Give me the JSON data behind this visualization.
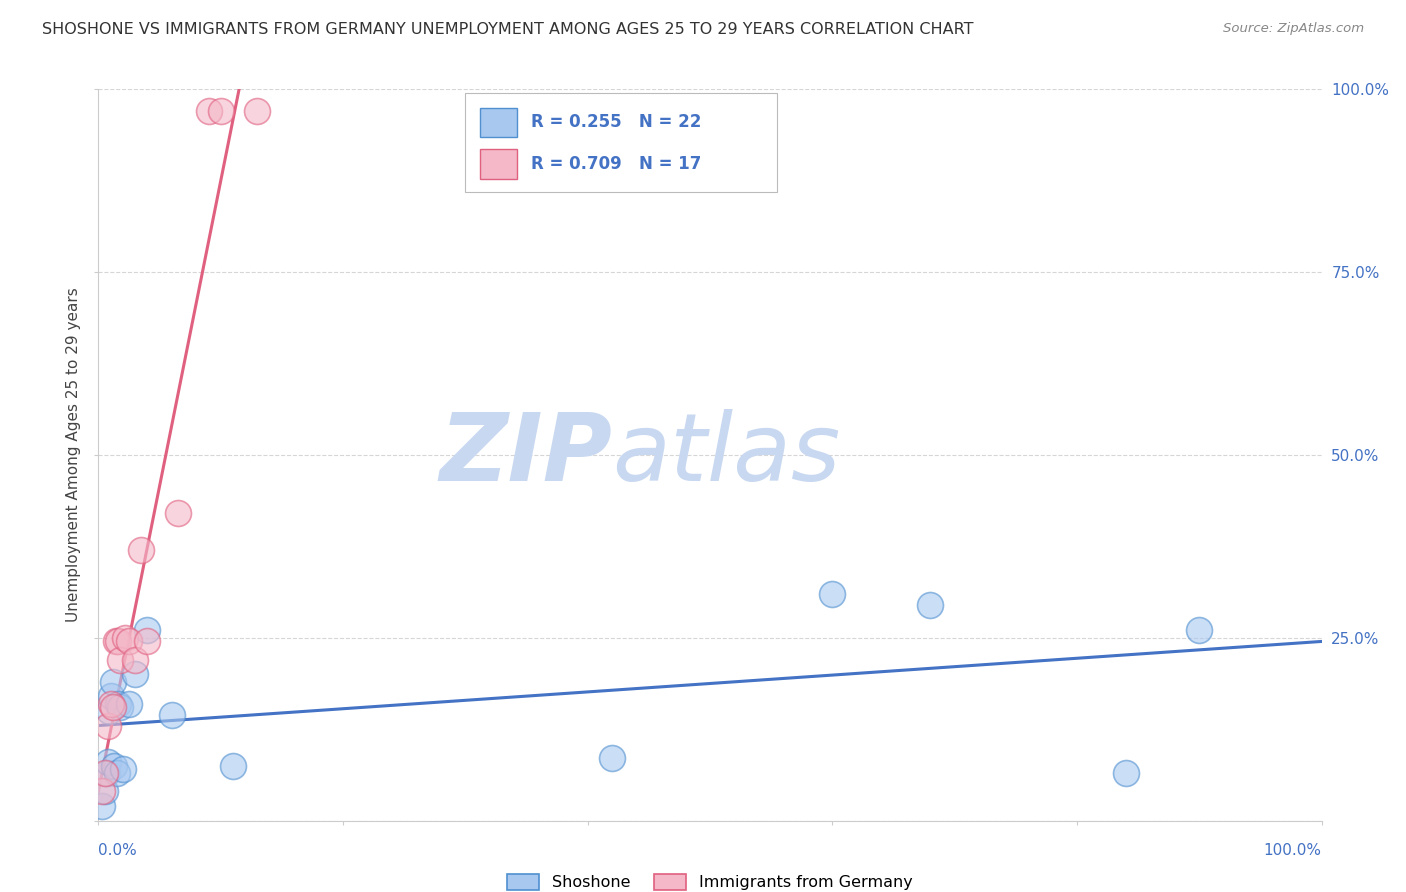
{
  "title": "SHOSHONE VS IMMIGRANTS FROM GERMANY UNEMPLOYMENT AMONG AGES 25 TO 29 YEARS CORRELATION CHART",
  "source": "Source: ZipAtlas.com",
  "ylabel": "Unemployment Among Ages 25 to 29 years",
  "xlim": [
    0,
    1
  ],
  "ylim": [
    0,
    1
  ],
  "ytick_labels": [
    "",
    "25.0%",
    "50.0%",
    "75.0%",
    "100.0%"
  ],
  "ytick_values": [
    0,
    0.25,
    0.5,
    0.75,
    1.0
  ],
  "xtick_values": [
    0,
    0.2,
    0.4,
    0.6,
    0.8,
    1.0
  ],
  "shoshone_color": "#A8C8F0",
  "germany_color": "#F4B8C8",
  "shoshone_edge_color": "#5090D0",
  "germany_edge_color": "#E06080",
  "shoshone_line_color": "#4472C4",
  "germany_line_color": "#E06080",
  "legend_label1": "Shoshone",
  "legend_label2": "Immigrants from Germany",
  "watermark_zip": "ZIP",
  "watermark_atlas": "atlas",
  "watermark_color": "#C8D8F0",
  "shoshone_x": [
    0.003,
    0.005,
    0.007,
    0.008,
    0.009,
    0.01,
    0.012,
    0.013,
    0.015,
    0.016,
    0.018,
    0.02,
    0.025,
    0.03,
    0.04,
    0.06,
    0.11,
    0.42,
    0.6,
    0.68,
    0.84,
    0.9
  ],
  "shoshone_y": [
    0.02,
    0.04,
    0.065,
    0.08,
    0.15,
    0.17,
    0.19,
    0.075,
    0.065,
    0.16,
    0.155,
    0.07,
    0.16,
    0.2,
    0.26,
    0.145,
    0.075,
    0.085,
    0.31,
    0.295,
    0.065,
    0.26
  ],
  "germany_x": [
    0.003,
    0.005,
    0.008,
    0.01,
    0.012,
    0.014,
    0.016,
    0.018,
    0.022,
    0.025,
    0.03,
    0.035,
    0.04,
    0.065,
    0.09,
    0.1,
    0.13
  ],
  "germany_y": [
    0.04,
    0.065,
    0.13,
    0.16,
    0.155,
    0.245,
    0.245,
    0.22,
    0.25,
    0.245,
    0.22,
    0.37,
    0.245,
    0.42,
    0.97,
    0.97,
    0.97
  ],
  "blue_line_x": [
    0.0,
    1.0
  ],
  "blue_line_y": [
    0.13,
    0.245
  ],
  "pink_line_x": [
    0.0,
    0.115
  ],
  "pink_line_y": [
    0.04,
    1.0
  ]
}
